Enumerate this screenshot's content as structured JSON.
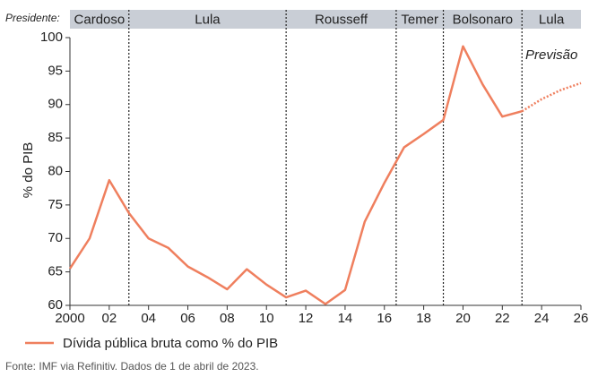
{
  "chart_data": {
    "type": "line",
    "y_label": "% do PIB",
    "header_label": "Presidente:",
    "annotation": "Previsão",
    "source": "Fonte: IMF via Refinitiv. Dados de 1 de abril de 2023.",
    "presidents": [
      {
        "name": "Cardoso",
        "start": 2000,
        "end": 2003
      },
      {
        "name": "Lula",
        "start": 2003,
        "end": 2011
      },
      {
        "name": "Rousseff",
        "start": 2011,
        "end": 2016.6
      },
      {
        "name": "Temer",
        "start": 2016.6,
        "end": 2019
      },
      {
        "name": "Bolsonaro",
        "start": 2019,
        "end": 2023
      },
      {
        "name": "Lula",
        "start": 2023,
        "end": 2026
      }
    ],
    "x": [
      2000,
      2001,
      2002,
      2003,
      2004,
      2005,
      2006,
      2007,
      2008,
      2009,
      2010,
      2011,
      2012,
      2013,
      2014,
      2015,
      2016,
      2017,
      2018,
      2019,
      2020,
      2021,
      2022,
      2023,
      2024,
      2025,
      2026
    ],
    "series": [
      {
        "name": "Dívida pública bruta como % do PIB",
        "color": "#ef7f5e",
        "style": "solid",
        "values": [
          65.5,
          70,
          78.7,
          73.8,
          70,
          68.6,
          65.8,
          64.2,
          62.4,
          65.4,
          63.1,
          61.2,
          62.2,
          60.2,
          62.3,
          72.5,
          78.3,
          83.6,
          85.6,
          87.7,
          98.7,
          93,
          88.2,
          89,
          null,
          null,
          null
        ]
      },
      {
        "color": "#ef7f5e",
        "style": "dotted",
        "values": [
          null,
          null,
          null,
          null,
          null,
          null,
          null,
          null,
          null,
          null,
          null,
          null,
          null,
          null,
          null,
          null,
          null,
          null,
          null,
          null,
          null,
          null,
          null,
          89,
          90.8,
          92.2,
          93.2
        ]
      }
    ],
    "xlim": [
      2000,
      2026
    ],
    "xticks": [
      2000,
      {
        "value": 2002,
        "label": "02"
      },
      {
        "value": 2004,
        "label": "04"
      },
      {
        "value": 2006,
        "label": "06"
      },
      {
        "value": 2008,
        "label": "08"
      },
      {
        "value": 2010,
        "label": "10"
      },
      {
        "value": 2012,
        "label": "12"
      },
      {
        "value": 2014,
        "label": "14"
      },
      {
        "value": 2016,
        "label": "16"
      },
      {
        "value": 2018,
        "label": "18"
      },
      {
        "value": 2020,
        "label": "20"
      },
      {
        "value": 2022,
        "label": "22"
      },
      {
        "value": 2024,
        "label": "24"
      },
      {
        "value": 2026,
        "label": "26"
      }
    ],
    "ylim": [
      60,
      100
    ],
    "yticks": [
      60,
      65,
      70,
      75,
      80,
      85,
      90,
      95,
      100
    ],
    "grid": false,
    "header_color": "#c9ced6"
  }
}
